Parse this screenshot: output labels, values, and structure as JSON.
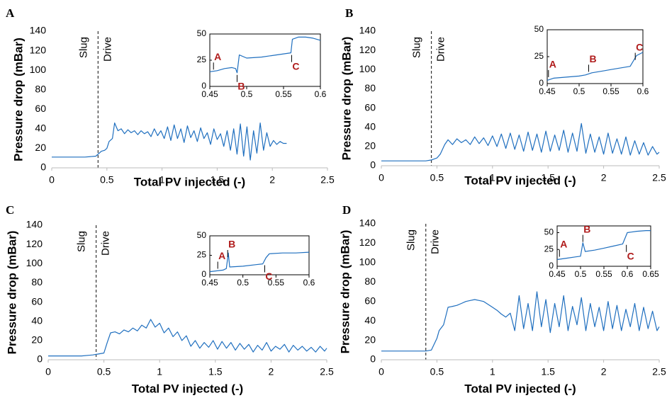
{
  "chart_data": [
    {
      "type": "line",
      "panel": "A",
      "ylabel": "Pressure drop (mBar)",
      "xlabel": "Total PV injected (-)",
      "color": "#1f6fbf",
      "xlim": [
        0,
        2.5
      ],
      "ylim": [
        0,
        140
      ],
      "xticks": [
        0,
        0.5,
        1,
        1.5,
        2,
        2.5
      ],
      "yticks": [
        0,
        20,
        40,
        60,
        80,
        100,
        120,
        140
      ],
      "divider": {
        "x": 0.42,
        "left_label": "Slug",
        "right_label": "Drive"
      },
      "x": [
        0,
        0.1,
        0.2,
        0.3,
        0.4,
        0.45,
        0.48,
        0.5,
        0.52,
        0.55,
        0.57,
        0.6,
        0.63,
        0.66,
        0.69,
        0.72,
        0.75,
        0.78,
        0.81,
        0.84,
        0.87,
        0.9,
        0.93,
        0.96,
        0.99,
        1.02,
        1.05,
        1.08,
        1.11,
        1.14,
        1.17,
        1.2,
        1.23,
        1.26,
        1.29,
        1.32,
        1.35,
        1.38,
        1.41,
        1.44,
        1.47,
        1.5,
        1.53,
        1.56,
        1.59,
        1.62,
        1.65,
        1.68,
        1.71,
        1.74,
        1.77,
        1.8,
        1.83,
        1.86,
        1.89,
        1.92,
        1.95,
        1.98,
        2.01,
        2.04,
        2.07,
        2.1,
        2.13
      ],
      "values": [
        11,
        11,
        11,
        11,
        12,
        17,
        18,
        20,
        27,
        30,
        46,
        38,
        40,
        35,
        39,
        36,
        38,
        34,
        38,
        35,
        37,
        32,
        40,
        33,
        38,
        30,
        42,
        28,
        44,
        30,
        40,
        26,
        43,
        31,
        38,
        27,
        41,
        30,
        36,
        24,
        40,
        29,
        35,
        22,
        38,
        18,
        40,
        14,
        45,
        12,
        42,
        8,
        38,
        15,
        46,
        18,
        36,
        22,
        28,
        24,
        27,
        25,
        25
      ],
      "inset": {
        "type": "line",
        "xlim": [
          0.45,
          0.6
        ],
        "ylim": [
          0,
          50
        ],
        "xticks": [
          0.45,
          0.5,
          0.55,
          0.6
        ],
        "yticks": [
          0,
          25,
          50
        ],
        "x": [
          0.45,
          0.46,
          0.47,
          0.48,
          0.485,
          0.487,
          0.49,
          0.5,
          0.52,
          0.54,
          0.56,
          0.562,
          0.57,
          0.58,
          0.59,
          0.6
        ],
        "values": [
          14,
          15,
          17,
          18,
          17,
          13,
          30,
          27,
          28,
          30,
          32,
          45,
          47,
          47,
          46,
          44
        ],
        "markers": [
          {
            "label": "A",
            "x": 0.455,
            "y": 14,
            "side": "above"
          },
          {
            "label": "B",
            "x": 0.487,
            "y": 13,
            "side": "below"
          },
          {
            "label": "C",
            "x": 0.561,
            "y": 32,
            "side": "below"
          }
        ]
      }
    },
    {
      "type": "line",
      "panel": "B",
      "ylabel": "Pressure drop (mBar)",
      "xlabel": "Total PV injected (-)",
      "color": "#1f6fbf",
      "xlim": [
        0,
        2.5
      ],
      "ylim": [
        0,
        140
      ],
      "xticks": [
        0,
        0.5,
        1,
        1.5,
        2,
        2.5
      ],
      "yticks": [
        0,
        20,
        40,
        60,
        80,
        100,
        120,
        140
      ],
      "divider": {
        "x": 0.45,
        "left_label": "Slug",
        "right_label": "Drive"
      },
      "x": [
        0,
        0.1,
        0.2,
        0.3,
        0.4,
        0.45,
        0.5,
        0.53,
        0.57,
        0.6,
        0.64,
        0.68,
        0.72,
        0.76,
        0.8,
        0.84,
        0.88,
        0.92,
        0.96,
        1,
        1.04,
        1.08,
        1.12,
        1.16,
        1.2,
        1.24,
        1.28,
        1.32,
        1.36,
        1.4,
        1.44,
        1.48,
        1.52,
        1.56,
        1.6,
        1.64,
        1.68,
        1.72,
        1.76,
        1.8,
        1.84,
        1.88,
        1.92,
        1.96,
        2,
        2.04,
        2.08,
        2.12,
        2.16,
        2.2,
        2.24,
        2.28,
        2.32,
        2.36,
        2.4,
        2.44,
        2.48,
        2.5
      ],
      "values": [
        5,
        5,
        5,
        5,
        5,
        6,
        8,
        12,
        22,
        27,
        22,
        28,
        24,
        27,
        22,
        30,
        23,
        29,
        21,
        31,
        20,
        33,
        18,
        34,
        17,
        32,
        15,
        35,
        16,
        33,
        14,
        36,
        15,
        32,
        16,
        37,
        14,
        34,
        15,
        44,
        13,
        33,
        14,
        30,
        12,
        34,
        13,
        28,
        12,
        30,
        11,
        26,
        12,
        24,
        11,
        20,
        12,
        14
      ],
      "inset": {
        "type": "line",
        "xlim": [
          0.45,
          0.6
        ],
        "ylim": [
          0,
          50
        ],
        "xticks": [
          0.45,
          0.5,
          0.55,
          0.6
        ],
        "yticks": [
          0,
          25,
          50
        ],
        "x": [
          0.45,
          0.46,
          0.48,
          0.5,
          0.51,
          0.52,
          0.53,
          0.54,
          0.55,
          0.56,
          0.57,
          0.58,
          0.59,
          0.6
        ],
        "values": [
          3,
          5,
          6,
          7,
          8,
          10,
          11,
          12,
          13,
          14,
          15,
          16,
          26,
          29
        ],
        "markers": [
          {
            "label": "A",
            "x": 0.452,
            "y": 4,
            "side": "above"
          },
          {
            "label": "B",
            "x": 0.515,
            "y": 9,
            "side": "above"
          },
          {
            "label": "C",
            "x": 0.588,
            "y": 20,
            "side": "above"
          }
        ]
      }
    },
    {
      "type": "line",
      "panel": "C",
      "ylabel": "Pressure drop (mBar)",
      "xlabel": "Total PV injected (-)",
      "color": "#1f6fbf",
      "xlim": [
        0,
        2.5
      ],
      "ylim": [
        0,
        140
      ],
      "xticks": [
        0,
        0.5,
        1,
        1.5,
        2,
        2.5
      ],
      "yticks": [
        0,
        20,
        40,
        60,
        80,
        100,
        120,
        140
      ],
      "divider": {
        "x": 0.43,
        "left_label": "Slug",
        "right_label": "Drive"
      },
      "x": [
        0,
        0.1,
        0.2,
        0.3,
        0.4,
        0.45,
        0.5,
        0.53,
        0.56,
        0.6,
        0.64,
        0.68,
        0.72,
        0.76,
        0.8,
        0.84,
        0.88,
        0.92,
        0.96,
        1,
        1.04,
        1.08,
        1.12,
        1.16,
        1.2,
        1.24,
        1.28,
        1.32,
        1.36,
        1.4,
        1.44,
        1.48,
        1.52,
        1.56,
        1.6,
        1.64,
        1.68,
        1.72,
        1.76,
        1.8,
        1.84,
        1.88,
        1.92,
        1.96,
        2,
        2.04,
        2.08,
        2.12,
        2.16,
        2.2,
        2.24,
        2.28,
        2.32,
        2.36,
        2.4,
        2.44,
        2.48,
        2.5
      ],
      "values": [
        4,
        4,
        4,
        4,
        5,
        6,
        7,
        18,
        28,
        29,
        27,
        31,
        29,
        33,
        30,
        36,
        33,
        42,
        34,
        38,
        28,
        33,
        24,
        29,
        20,
        25,
        14,
        20,
        12,
        18,
        13,
        20,
        11,
        19,
        12,
        18,
        10,
        17,
        11,
        16,
        8,
        15,
        10,
        18,
        9,
        14,
        11,
        16,
        8,
        15,
        10,
        14,
        9,
        13,
        8,
        14,
        9,
        12
      ],
      "inset": {
        "type": "line",
        "xlim": [
          0.45,
          0.6
        ],
        "ylim": [
          0,
          50
        ],
        "xticks": [
          0.45,
          0.5,
          0.55,
          0.6
        ],
        "yticks": [
          0,
          25,
          50
        ],
        "x": [
          0.45,
          0.46,
          0.47,
          0.475,
          0.478,
          0.48,
          0.5,
          0.52,
          0.53,
          0.535,
          0.54,
          0.56,
          0.58,
          0.6
        ],
        "values": [
          4,
          5,
          6,
          8,
          28,
          10,
          11,
          13,
          14,
          22,
          27,
          28,
          28,
          29
        ],
        "markers": [
          {
            "label": "A",
            "x": 0.462,
            "y": 5,
            "side": "above"
          },
          {
            "label": "B",
            "x": 0.477,
            "y": 20,
            "side": "above"
          },
          {
            "label": "C",
            "x": 0.533,
            "y": 15,
            "side": "below"
          }
        ]
      }
    },
    {
      "type": "line",
      "panel": "D",
      "ylabel": "Pressure drop (mBar)",
      "xlabel": "Total PV injected (-)",
      "color": "#1f6fbf",
      "xlim": [
        0,
        2.5
      ],
      "ylim": [
        0,
        140
      ],
      "xticks": [
        0,
        0.5,
        1,
        1.5,
        2,
        2.5
      ],
      "yticks": [
        0,
        20,
        40,
        60,
        80,
        100,
        120,
        140
      ],
      "divider": {
        "x": 0.4,
        "left_label": "Slug",
        "right_label": "Drive"
      },
      "x": [
        0,
        0.1,
        0.2,
        0.3,
        0.4,
        0.45,
        0.5,
        0.52,
        0.56,
        0.6,
        0.64,
        0.68,
        0.72,
        0.76,
        0.8,
        0.84,
        0.88,
        0.92,
        0.96,
        1,
        1.04,
        1.08,
        1.12,
        1.16,
        1.2,
        1.24,
        1.28,
        1.32,
        1.36,
        1.4,
        1.44,
        1.48,
        1.52,
        1.56,
        1.6,
        1.64,
        1.68,
        1.72,
        1.76,
        1.8,
        1.84,
        1.88,
        1.92,
        1.96,
        2,
        2.04,
        2.08,
        2.12,
        2.16,
        2.2,
        2.24,
        2.28,
        2.32,
        2.36,
        2.4,
        2.44,
        2.48,
        2.5
      ],
      "values": [
        9,
        9,
        9,
        9,
        9,
        10,
        22,
        30,
        36,
        54,
        55,
        56,
        58,
        60,
        61,
        62,
        61,
        60,
        57,
        54,
        51,
        47,
        44,
        48,
        30,
        66,
        32,
        58,
        30,
        70,
        34,
        62,
        28,
        58,
        34,
        66,
        30,
        55,
        36,
        64,
        30,
        58,
        34,
        54,
        30,
        60,
        32,
        56,
        30,
        52,
        34,
        58,
        30,
        54,
        32,
        50,
        30,
        34
      ],
      "inset": {
        "type": "line",
        "xlim": [
          0.45,
          0.65
        ],
        "ylim": [
          0,
          60
        ],
        "xticks": [
          0.45,
          0.5,
          0.55,
          0.6,
          0.65
        ],
        "yticks": [
          0,
          25,
          50
        ],
        "x": [
          0.45,
          0.47,
          0.49,
          0.5,
          0.505,
          0.51,
          0.53,
          0.55,
          0.57,
          0.59,
          0.6,
          0.62,
          0.64,
          0.65
        ],
        "values": [
          10,
          12,
          14,
          15,
          35,
          22,
          24,
          27,
          30,
          33,
          50,
          52,
          53,
          53
        ],
        "markers": [
          {
            "label": "A",
            "x": 0.455,
            "y": 11,
            "side": "above"
          },
          {
            "label": "B",
            "x": 0.505,
            "y": 33,
            "side": "above"
          },
          {
            "label": "C",
            "x": 0.598,
            "y": 35,
            "side": "below"
          }
        ]
      }
    }
  ]
}
